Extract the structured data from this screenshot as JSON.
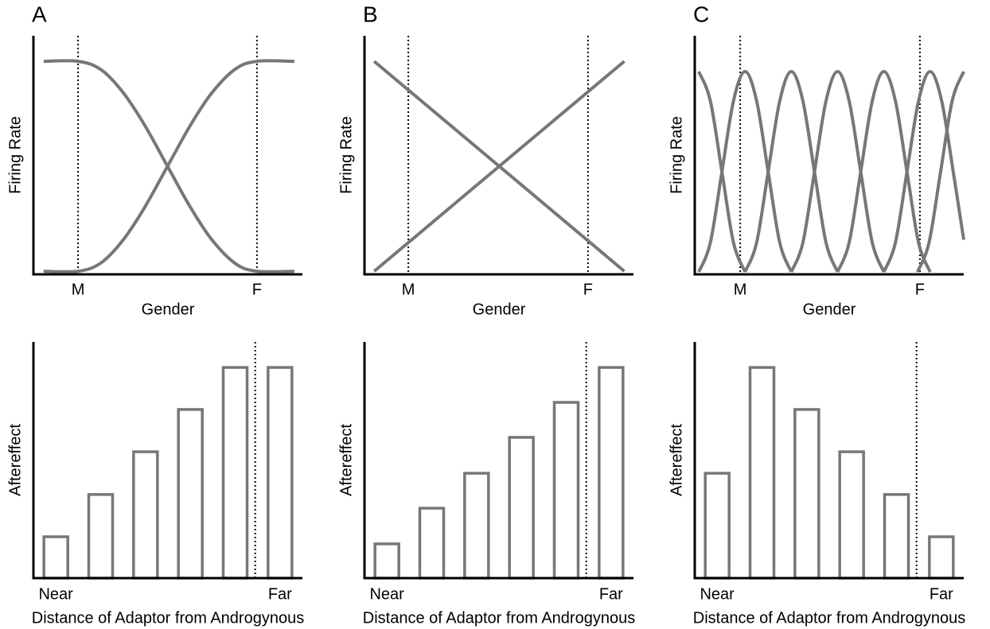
{
  "chart_data": [
    {
      "type": "line",
      "panel_label": "A",
      "ylabel": "Firing Rate",
      "xlabel": "Gender",
      "color": "#777777",
      "xlim": [
        0,
        100
      ],
      "ylim": [
        0,
        100
      ],
      "xticks": [
        {
          "value": 16.6,
          "label": "M"
        },
        {
          "value": 83.1,
          "label": "F"
        }
      ],
      "series": [
        {
          "x": [
            3.8,
            16.6,
            25,
            33,
            41,
            50,
            58,
            66,
            75,
            83.1,
            97
          ],
          "values": [
            89.3,
            89.3,
            85.9,
            76.7,
            63.2,
            45.0,
            28.8,
            15.0,
            4.6,
            1.3,
            1.3
          ]
        },
        {
          "x": [
            3.8,
            16.6,
            25,
            33,
            41,
            50,
            58,
            66,
            75,
            83.1,
            97
          ],
          "values": [
            1.3,
            1.3,
            4.7,
            13.9,
            27.4,
            45.6,
            61.8,
            75.6,
            86.0,
            89.3,
            89.3
          ]
        }
      ]
    },
    {
      "type": "line",
      "panel_label": "B",
      "ylabel": "Firing Rate",
      "xlabel": "Gender",
      "color": "#777777",
      "xlim": [
        0,
        100
      ],
      "ylim": [
        0,
        100
      ],
      "xticks": [
        {
          "value": 16.3,
          "label": "M"
        },
        {
          "value": 83.1,
          "label": "F"
        }
      ],
      "series": [
        {
          "x": [
            3.6,
            96.6
          ],
          "values": [
            89.3,
            1.3
          ]
        },
        {
          "x": [
            3.6,
            96.6
          ],
          "values": [
            1.3,
            89.3
          ]
        }
      ]
    },
    {
      "type": "line",
      "panel_label": "C",
      "ylabel": "Firing Rate",
      "xlabel": "Gender",
      "color": "#777777",
      "xlim": [
        0,
        100
      ],
      "ylim": [
        0,
        100
      ],
      "xticks": [
        {
          "value": 16.9,
          "label": "M"
        },
        {
          "value": 83.7,
          "label": "F"
        }
      ],
      "series": [
        {
          "x": [
            1.5,
            5.8,
            10.1,
            14.4,
            18.7
          ],
          "values": [
            85,
            72.7,
            43,
            13.3,
            1
          ]
        },
        {
          "x": [
            1.5,
            5.8,
            10.1,
            14.4,
            18.7,
            23,
            27.3,
            31.6,
            35.9
          ],
          "values": [
            1,
            13.3,
            43,
            72.7,
            85,
            72.7,
            43,
            13.3,
            1
          ]
        },
        {
          "x": [
            18.7,
            23,
            27.3,
            31.6,
            35.9,
            40.2,
            44.5,
            48.8,
            53.1
          ],
          "values": [
            1,
            13.3,
            43,
            72.7,
            85,
            72.7,
            43,
            13.3,
            1
          ]
        },
        {
          "x": [
            35.9,
            40.2,
            44.5,
            48.8,
            53.1,
            57.4,
            61.7,
            66,
            70.3
          ],
          "values": [
            1,
            13.3,
            43,
            72.7,
            85,
            72.7,
            43,
            13.3,
            1
          ]
        },
        {
          "x": [
            53.1,
            57.4,
            61.7,
            66,
            70.3,
            74.6,
            78.9,
            83.2,
            87.5
          ],
          "values": [
            1,
            13.3,
            43,
            72.7,
            85,
            72.7,
            43,
            13.3,
            1
          ]
        },
        {
          "x": [
            70.3,
            74.6,
            78.9,
            83.2,
            87.5,
            91.8,
            96.1,
            100
          ],
          "values": [
            1,
            13.3,
            43,
            72.7,
            85,
            72.7,
            43,
            14.5
          ]
        },
        {
          "x": [
            82.8,
            87.1,
            91.4,
            95.7,
            100
          ],
          "values": [
            1,
            13.3,
            43,
            72.7,
            85
          ]
        }
      ]
    },
    {
      "type": "bar",
      "ylabel": "Aftereffect",
      "xlabel": "Distance of Adaptor from Androgynous",
      "color": "#777777",
      "ylim": [
        0,
        100
      ],
      "categories": [
        "Near",
        null,
        null,
        null,
        null,
        "Far"
      ],
      "values": [
        17.5,
        35.4,
        53.5,
        71.4,
        89.2,
        89.2
      ]
    },
    {
      "type": "bar",
      "ylabel": "Aftereffect",
      "xlabel": "Distance of Adaptor from Androgynous",
      "color": "#777777",
      "ylim": [
        0,
        100
      ],
      "categories": [
        "Near",
        null,
        null,
        null,
        null,
        "Far"
      ],
      "values": [
        14.5,
        29.6,
        44.4,
        59.6,
        74.4,
        89.2
      ]
    },
    {
      "type": "bar",
      "ylabel": "Aftereffect",
      "xlabel": "Distance of Adaptor from Androgynous",
      "color": "#777777",
      "ylim": [
        0,
        100
      ],
      "categories": [
        "Near",
        null,
        null,
        null,
        null,
        "Far"
      ],
      "values": [
        44.4,
        89.2,
        71.4,
        53.5,
        35.4,
        17.5
      ]
    }
  ]
}
